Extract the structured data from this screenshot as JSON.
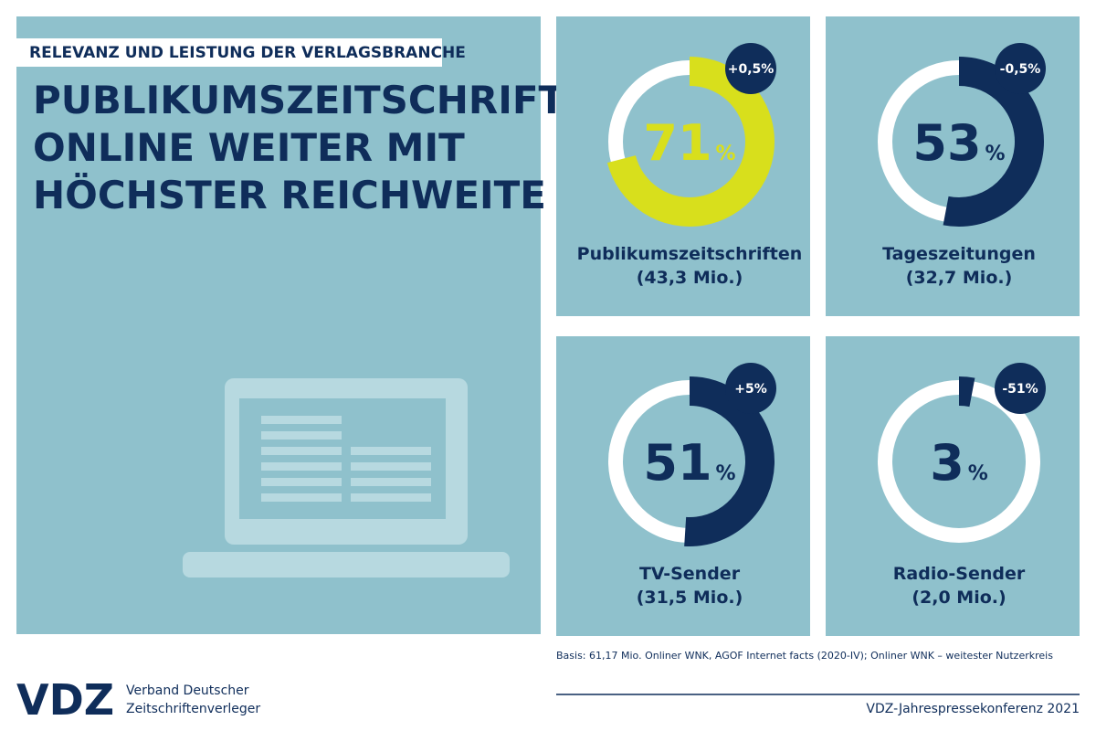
{
  "header": {
    "kicker": "RELEVANZ UND LEISTUNG DER VERLAGSBRANCHE",
    "title_lines": [
      "PUBLIKUMSZEITSCHRIFTEN",
      "ONLINE WEITER MIT",
      "HÖCHSTER REICHWEITE"
    ]
  },
  "chart_data": [
    {
      "type": "donut",
      "title": "Publikumszeitschriften",
      "subtitle": "(43,3 Mio.)",
      "values": [
        71
      ],
      "unit": "%",
      "annotation": "+0,5%",
      "color": "#d8df1c"
    },
    {
      "type": "donut",
      "title": "Tageszeitungen",
      "subtitle": "(32,7 Mio.)",
      "values": [
        53
      ],
      "unit": "%",
      "annotation": "-0,5%",
      "color": "#0f2d5a"
    },
    {
      "type": "donut",
      "title": "TV-Sender",
      "subtitle": "(31,5 Mio.)",
      "values": [
        51
      ],
      "unit": "%",
      "annotation": "+5%",
      "color": "#0f2d5a"
    },
    {
      "type": "donut",
      "title": "Radio-Sender",
      "subtitle": "(2,0 Mio.)",
      "values": [
        3
      ],
      "unit": "%",
      "annotation": "-51%",
      "color": "#0f2d5a"
    }
  ],
  "footer": {
    "source": "Basis: 61,17 Mio. Onliner WNK, AGOF Internet facts (2020-IV); Onliner WNK – weitester Nutzerkreis",
    "logo": "VDZ",
    "org_lines": [
      "Verband Deutscher",
      "Zeitschriftenverleger"
    ],
    "event": "VDZ-Jahrespressekonferenz 2021"
  }
}
